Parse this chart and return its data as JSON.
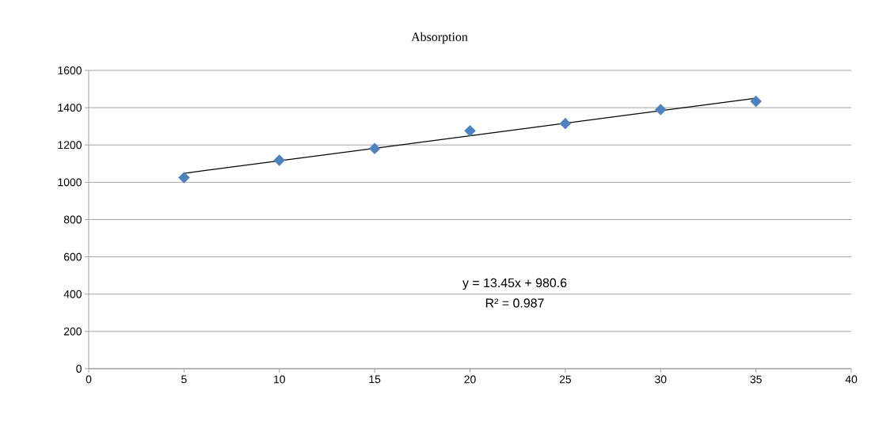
{
  "chart_data": {
    "type": "scatter",
    "title": "Absorption",
    "x": [
      5,
      10,
      15,
      20,
      25,
      30,
      35
    ],
    "series": [
      {
        "color": "#4f81bd",
        "marker": "diamond",
        "values": [
          1025,
          1118,
          1181,
          1276,
          1315,
          1390,
          1434
        ]
      },
      {
        "type": "line",
        "color": "#000000",
        "marker": "none",
        "x": [
          5,
          35
        ],
        "values": [
          1048,
          1451
        ]
      }
    ],
    "annotations": [
      "y = 13.45x + 980.6",
      "R² = 0.987"
    ],
    "xlim": [
      0,
      40
    ],
    "xticks": [
      0,
      5,
      10,
      15,
      20,
      25,
      30,
      35,
      40
    ],
    "ylim": [
      0,
      1600
    ],
    "yticks": [
      0,
      200,
      400,
      600,
      800,
      1000,
      1200,
      1400,
      1600
    ],
    "grid": "y"
  }
}
